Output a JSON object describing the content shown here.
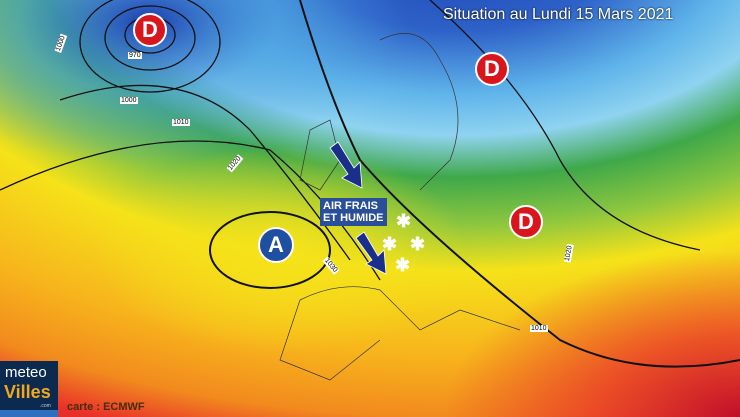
{
  "title": "Situation au Lundi 15 Mars 2021",
  "pressure_systems": [
    {
      "type": "low",
      "letter": "D",
      "location": "south of Iceland"
    },
    {
      "type": "low",
      "letter": "D",
      "location": "Finland"
    },
    {
      "type": "low",
      "letter": "D",
      "location": "Ukraine"
    },
    {
      "type": "high",
      "letter": "A",
      "location": "Azores / Atlantic"
    }
  ],
  "annotation": {
    "line1": "AIR FRAIS",
    "line2": "ET HUMIDE"
  },
  "isobar_labels": [
    "1000",
    "970",
    "1000",
    "1010",
    "1020",
    "1030",
    "1010",
    "1020"
  ],
  "logo": {
    "line1": "meteo",
    "line2": "Villes",
    "suffix": ".com"
  },
  "credit": "carte : ECMWF",
  "colors": {
    "low": "#d8161e",
    "high": "#1e4fa0",
    "cold": "#2e62c8",
    "cool": "#8fd3f0",
    "mild": "#3fa84a",
    "warm": "#f5e21a",
    "hot": "#f7a21c",
    "very_hot": "#e8302a"
  }
}
